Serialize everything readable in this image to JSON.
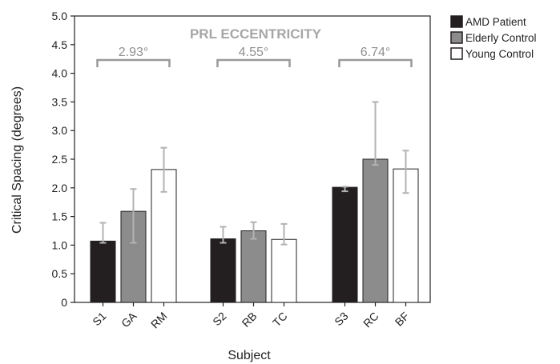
{
  "chart_data": {
    "type": "bar",
    "title": "",
    "xlabel": "Subject",
    "ylabel": "Critical Spacing (degrees)",
    "ylim": [
      0,
      5
    ],
    "yticks": [
      "0",
      "0.5",
      "1.0",
      "1.5",
      "2.0",
      "2.5",
      "3.0",
      "3.5",
      "4.0",
      "4.5",
      "5.0"
    ],
    "grid": false,
    "legend_position": "top-right",
    "annotation_title": "PRL ECCENTRICITY",
    "series": [
      {
        "name": "AMD Patient",
        "color": "#231f20"
      },
      {
        "name": "Elderly Control",
        "color": "#8c8c8c"
      },
      {
        "name": "Young Control",
        "color": "#ffffff"
      }
    ],
    "groups": [
      {
        "eccentricity": "2.93°",
        "bars": [
          {
            "label": "S1",
            "series": 0,
            "value": 1.07,
            "err_low": 1.04,
            "err_high": 1.39
          },
          {
            "label": "GA",
            "series": 1,
            "value": 1.59,
            "err_low": 1.04,
            "err_high": 1.98
          },
          {
            "label": "RM",
            "series": 2,
            "value": 2.32,
            "err_low": 1.93,
            "err_high": 2.7
          }
        ]
      },
      {
        "eccentricity": "4.55°",
        "bars": [
          {
            "label": "S2",
            "series": 0,
            "value": 1.11,
            "err_low": 1.04,
            "err_high": 1.32
          },
          {
            "label": "RB",
            "series": 1,
            "value": 1.25,
            "err_low": 1.11,
            "err_high": 1.4
          },
          {
            "label": "TC",
            "series": 2,
            "value": 1.1,
            "err_low": 1.01,
            "err_high": 1.37
          }
        ]
      },
      {
        "eccentricity": "6.74°",
        "bars": [
          {
            "label": "S3",
            "series": 0,
            "value": 2.01,
            "err_low": 1.94,
            "err_high": 2.02
          },
          {
            "label": "RC",
            "series": 1,
            "value": 2.5,
            "err_low": 2.4,
            "err_high": 3.5
          },
          {
            "label": "BF",
            "series": 2,
            "value": 2.33,
            "err_low": 1.91,
            "err_high": 2.65
          }
        ]
      }
    ]
  }
}
